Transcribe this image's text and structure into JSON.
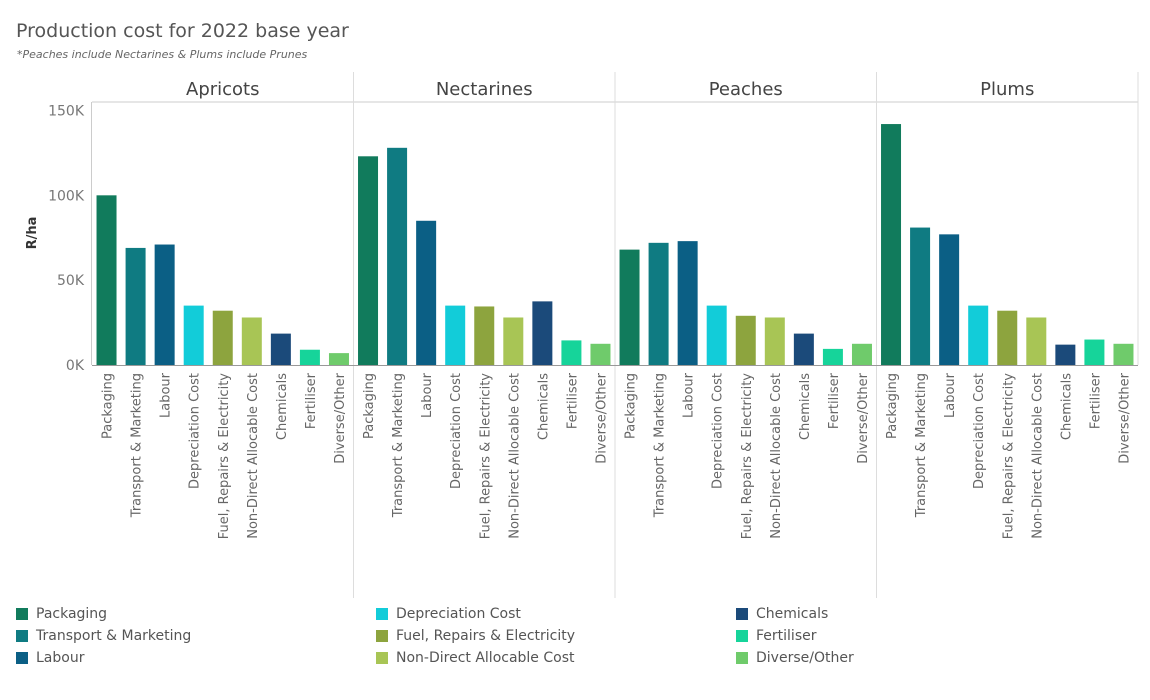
{
  "header": {
    "title": "Production cost for 2022 base year",
    "subtitle": "*Peaches include Nectarines & Plums include Prunes"
  },
  "chart_data": {
    "type": "bar",
    "title": "Production cost for 2022 base year",
    "ylabel": "R/ha",
    "xlabel": "",
    "ylim": [
      0,
      155000
    ],
    "yticks": [
      0,
      50000,
      100000,
      150000
    ],
    "ytick_labels": [
      "0K",
      "50K",
      "100K",
      "150K"
    ],
    "grid": false,
    "legend_position": "bottom",
    "categories": [
      "Packaging",
      "Transport & Marketing",
      "Labour",
      "Depreciation Cost",
      "Fuel, Repairs & Electricity",
      "Non-Direct Allocable Cost",
      "Chemicals",
      "Fertiliser",
      "Diverse/Other"
    ],
    "colors": [
      "#117b5c",
      "#0f7b82",
      "#0b5f85",
      "#12ccd9",
      "#8da43e",
      "#a8c555",
      "#1b4a7a",
      "#16d49a",
      "#6fcb6b"
    ],
    "panels": [
      {
        "name": "Apricots",
        "values": [
          100000,
          69000,
          71000,
          35000,
          32000,
          28000,
          18500,
          9000,
          7000
        ]
      },
      {
        "name": "Nectarines",
        "values": [
          123000,
          128000,
          85000,
          35000,
          34500,
          28000,
          37500,
          14500,
          12500
        ]
      },
      {
        "name": "Peaches",
        "values": [
          68000,
          72000,
          73000,
          35000,
          29000,
          28000,
          18500,
          9500,
          12500
        ]
      },
      {
        "name": "Plums",
        "values": [
          142000,
          81000,
          77000,
          35000,
          32000,
          28000,
          12000,
          15000,
          12500
        ]
      }
    ]
  }
}
